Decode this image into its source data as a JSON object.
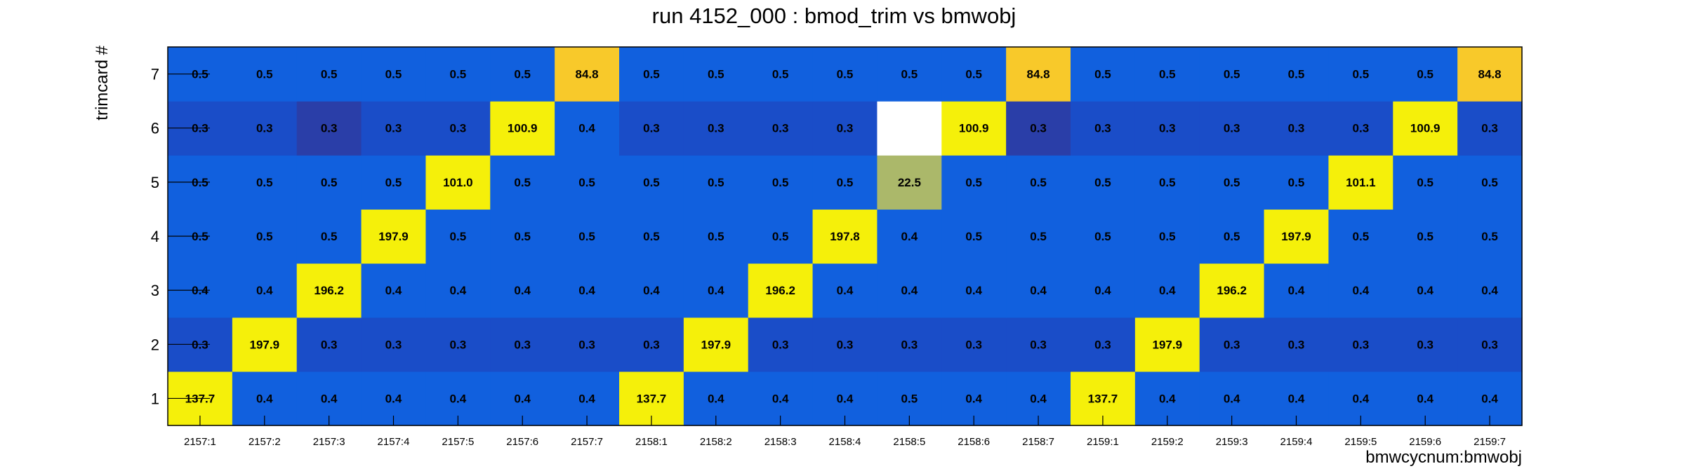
{
  "chart_data": {
    "type": "heatmap",
    "title": "run 4152_000 : bmod_trim vs bmwobj",
    "xlabel": "bmwcycnum:bmwobj",
    "ylabel": "trimcard #",
    "x_categories": [
      "2157:1",
      "2157:2",
      "2157:3",
      "2157:4",
      "2157:5",
      "2157:6",
      "2157:7",
      "2158:1",
      "2158:2",
      "2158:3",
      "2158:4",
      "2158:5",
      "2158:6",
      "2158:7",
      "2159:1",
      "2159:2",
      "2159:3",
      "2159:4",
      "2159:5",
      "2159:6",
      "2159:7"
    ],
    "y_categories": [
      "1",
      "2",
      "3",
      "4",
      "5",
      "6",
      "7"
    ],
    "values": [
      [
        "137.7",
        "0.4",
        "0.4",
        "0.4",
        "0.4",
        "0.4",
        "0.4",
        "137.7",
        "0.4",
        "0.4",
        "0.4",
        "0.5",
        "0.4",
        "0.4",
        "137.7",
        "0.4",
        "0.4",
        "0.4",
        "0.4",
        "0.4",
        "0.4"
      ],
      [
        "0.3",
        "197.9",
        "0.3",
        "0.3",
        "0.3",
        "0.3",
        "0.3",
        "0.3",
        "197.9",
        "0.3",
        "0.3",
        "0.3",
        "0.3",
        "0.3",
        "0.3",
        "197.9",
        "0.3",
        "0.3",
        "0.3",
        "0.3",
        "0.3"
      ],
      [
        "0.4",
        "0.4",
        "196.2",
        "0.4",
        "0.4",
        "0.4",
        "0.4",
        "0.4",
        "0.4",
        "196.2",
        "0.4",
        "0.4",
        "0.4",
        "0.4",
        "0.4",
        "0.4",
        "196.2",
        "0.4",
        "0.4",
        "0.4",
        "0.4"
      ],
      [
        "0.5",
        "0.5",
        "0.5",
        "197.9",
        "0.5",
        "0.5",
        "0.5",
        "0.5",
        "0.5",
        "0.5",
        "197.8",
        "0.4",
        "0.5",
        "0.5",
        "0.5",
        "0.5",
        "0.5",
        "197.9",
        "0.5",
        "0.5",
        "0.5"
      ],
      [
        "0.5",
        "0.5",
        "0.5",
        "0.5",
        "101.0",
        "0.5",
        "0.5",
        "0.5",
        "0.5",
        "0.5",
        "0.5",
        "22.5",
        "0.5",
        "0.5",
        "0.5",
        "0.5",
        "0.5",
        "0.5",
        "101.1",
        "0.5",
        "0.5"
      ],
      [
        "0.3",
        "0.3",
        "0.3",
        "0.3",
        "0.3",
        "100.9",
        "0.4",
        "0.3",
        "0.3",
        "0.3",
        "0.3",
        null,
        "100.9",
        "0.3",
        "0.3",
        "0.3",
        "0.3",
        "0.3",
        "0.3",
        "100.9",
        "0.3"
      ],
      [
        "0.5",
        "0.5",
        "0.5",
        "0.5",
        "0.5",
        "0.5",
        "84.8",
        "0.5",
        "0.5",
        "0.5",
        "0.5",
        "0.5",
        "0.5",
        "84.8",
        "0.5",
        "0.5",
        "0.5",
        "0.5",
        "0.5",
        "0.5",
        "84.8"
      ]
    ],
    "cell_colors": [
      [
        "#f5f00a",
        "#1160de",
        "#1160de",
        "#1160de",
        "#1160de",
        "#1160de",
        "#1160de",
        "#f5f00a",
        "#1160de",
        "#1160de",
        "#1160de",
        "#1160de",
        "#1160de",
        "#1160de",
        "#f5f00a",
        "#1160de",
        "#1160de",
        "#1160de",
        "#1160de",
        "#1160de",
        "#1160de"
      ],
      [
        "#1a4dc8",
        "#f5f00a",
        "#1a4dc8",
        "#1a4dc8",
        "#1a4dc8",
        "#1a4dc8",
        "#1a4dc8",
        "#1a4dc8",
        "#f5f00a",
        "#1a4dc8",
        "#1a4dc8",
        "#1a4dc8",
        "#1a4dc8",
        "#1a4dc8",
        "#1a4dc8",
        "#f5f00a",
        "#1a4dc8",
        "#1a4dc8",
        "#1a4dc8",
        "#1a4dc8",
        "#1a4dc8"
      ],
      [
        "#1160de",
        "#1160de",
        "#f5f00a",
        "#1160de",
        "#1160de",
        "#1160de",
        "#1160de",
        "#1160de",
        "#1160de",
        "#f5f00a",
        "#1160de",
        "#1160de",
        "#1160de",
        "#1160de",
        "#1160de",
        "#1160de",
        "#f5f00a",
        "#1160de",
        "#1160de",
        "#1160de",
        "#1160de"
      ],
      [
        "#1160de",
        "#1160de",
        "#1160de",
        "#f5f00a",
        "#1160de",
        "#1160de",
        "#1160de",
        "#1160de",
        "#1160de",
        "#1160de",
        "#f5f00a",
        "#1160de",
        "#1160de",
        "#1160de",
        "#1160de",
        "#1160de",
        "#1160de",
        "#f5f00a",
        "#1160de",
        "#1160de",
        "#1160de"
      ],
      [
        "#1160de",
        "#1160de",
        "#1160de",
        "#1160de",
        "#f5f00a",
        "#1160de",
        "#1160de",
        "#1160de",
        "#1160de",
        "#1160de",
        "#1160de",
        "#abb86a",
        "#1160de",
        "#1160de",
        "#1160de",
        "#1160de",
        "#1160de",
        "#1160de",
        "#f5f00a",
        "#1160de",
        "#1160de"
      ],
      [
        "#1a4dc8",
        "#1a4dc8",
        "#2a3ea8",
        "#1a4dc8",
        "#1a4dc8",
        "#f5f00a",
        "#1160de",
        "#1a4dc8",
        "#1a4dc8",
        "#1a4dc8",
        "#1a4dc8",
        "#ffffff",
        "#f5f00a",
        "#2a3ea8",
        "#1a4dc8",
        "#1a4dc8",
        "#1a4dc8",
        "#1a4dc8",
        "#1a4dc8",
        "#f5f00a",
        "#1a4dc8"
      ],
      [
        "#1160de",
        "#1160de",
        "#1160de",
        "#1160de",
        "#1160de",
        "#1160de",
        "#f8c92a",
        "#1160de",
        "#1160de",
        "#1160de",
        "#1160de",
        "#1160de",
        "#1160de",
        "#f8c92a",
        "#1160de",
        "#1160de",
        "#1160de",
        "#1160de",
        "#1160de",
        "#1160de",
        "#f8c92a"
      ]
    ],
    "legend": "none",
    "grid": false
  }
}
